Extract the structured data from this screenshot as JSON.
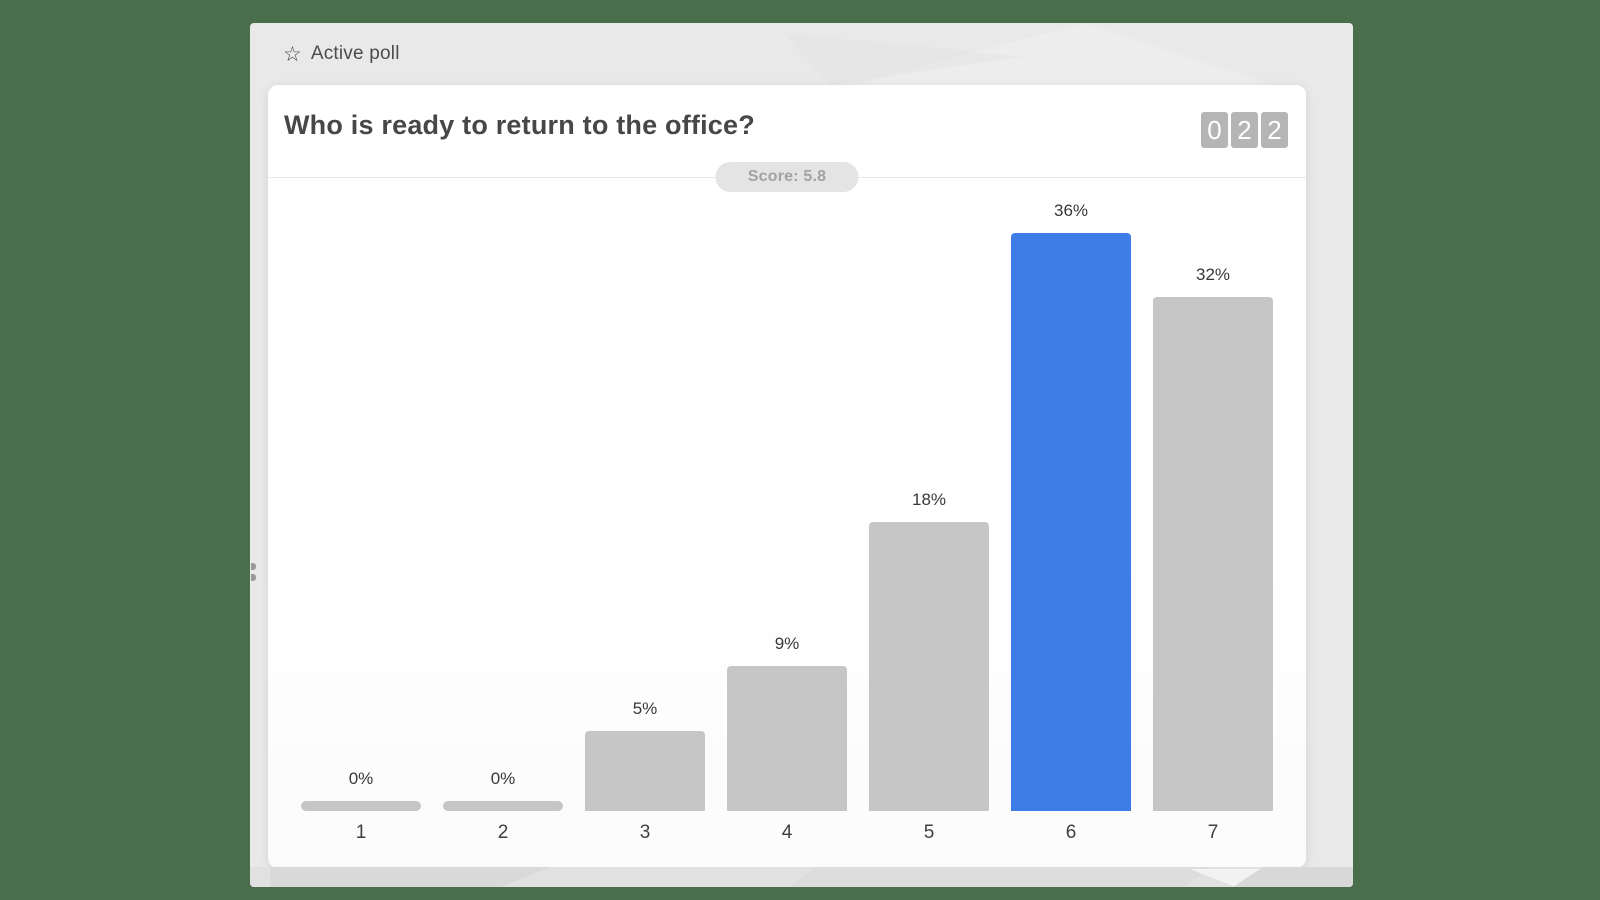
{
  "window": {
    "header": {
      "icon": "star-outline-icon",
      "label": "Active poll"
    }
  },
  "card": {
    "title": "Who is ready to return to the office?",
    "response_counter": {
      "digits": [
        "0",
        "2",
        "2"
      ]
    },
    "score_label": "Score: 5.8"
  },
  "chart_data": {
    "type": "bar",
    "title": "Who is ready to return to the office?",
    "categories": [
      "1",
      "2",
      "3",
      "4",
      "5",
      "6",
      "7"
    ],
    "values": [
      0,
      0,
      5,
      9,
      18,
      36,
      32
    ],
    "value_labels": [
      "0%",
      "0%",
      "5%",
      "9%",
      "18%",
      "36%",
      "32%"
    ],
    "highlighted_category": "6",
    "score": 5.8,
    "xlabel": "",
    "ylabel": "",
    "ylim": [
      0,
      40
    ],
    "grid": false,
    "legend": false
  },
  "colors": {
    "background_green": "#4a6e4b",
    "window_gray": "#e9e9e9",
    "card_white": "#ffffff",
    "bar_gray": "#c6c6c6",
    "bar_highlight_blue": "#3e7ce6",
    "counter_box_gray": "#b5b5b5",
    "pill_gray": "#e4e4e4",
    "title_text": "#474747"
  }
}
